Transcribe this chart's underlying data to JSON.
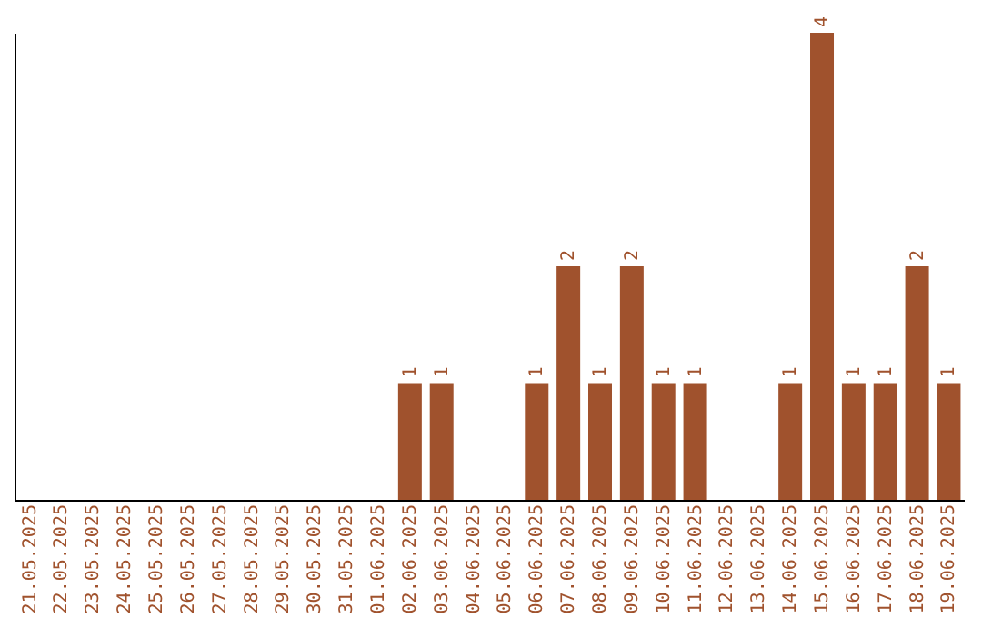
{
  "chart_data": {
    "type": "bar",
    "categories": [
      "21.05.2025",
      "22.05.2025",
      "23.05.2025",
      "24.05.2025",
      "25.05.2025",
      "26.05.2025",
      "27.05.2025",
      "28.05.2025",
      "29.05.2025",
      "30.05.2025",
      "31.05.2025",
      "01.06.2025",
      "02.06.2025",
      "03.06.2025",
      "04.06.2025",
      "05.06.2025",
      "06.06.2025",
      "07.06.2025",
      "08.06.2025",
      "09.06.2025",
      "10.06.2025",
      "11.06.2025",
      "12.06.2025",
      "13.06.2025",
      "14.06.2025",
      "15.06.2025",
      "16.06.2025",
      "17.06.2025",
      "18.06.2025",
      "19.06.2025"
    ],
    "values": [
      null,
      null,
      null,
      null,
      null,
      null,
      null,
      null,
      null,
      null,
      null,
      null,
      1,
      1,
      null,
      null,
      1,
      2,
      1,
      2,
      1,
      1,
      null,
      null,
      1,
      4,
      1,
      1,
      2,
      1
    ],
    "value_labels": [
      null,
      null,
      null,
      null,
      null,
      null,
      null,
      null,
      null,
      null,
      null,
      null,
      "1",
      "1",
      null,
      null,
      "1",
      "2",
      "1",
      "2",
      "1",
      "1",
      null,
      null,
      "1",
      "4",
      "1",
      "1",
      "2",
      "1"
    ],
    "color": "#a0522d",
    "tick_labels": "x",
    "grid": false
  }
}
